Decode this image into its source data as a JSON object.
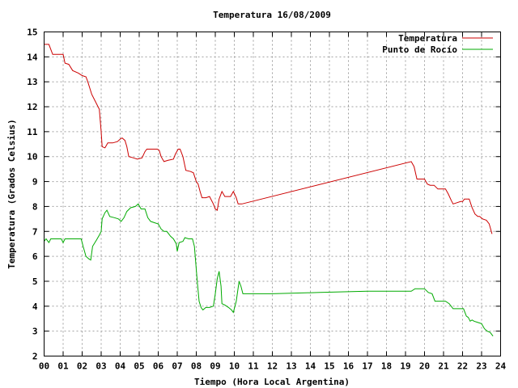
{
  "chart_data": {
    "type": "line",
    "title": "Temperatura 16/08/2009",
    "xlabel": "Tiempo (Hora Local Argentina)",
    "ylabel": "Temperatura (Grados Celsius)",
    "xlim": [
      0,
      24
    ],
    "ylim": [
      2,
      15
    ],
    "x_ticks": [
      "00",
      "01",
      "02",
      "03",
      "04",
      "05",
      "06",
      "07",
      "08",
      "09",
      "10",
      "11",
      "12",
      "13",
      "14",
      "15",
      "16",
      "17",
      "18",
      "19",
      "20",
      "21",
      "22",
      "23",
      "24"
    ],
    "y_ticks": [
      2,
      3,
      4,
      5,
      6,
      7,
      8,
      9,
      10,
      11,
      12,
      13,
      14,
      15
    ],
    "grid": true,
    "legend_position": "top-right",
    "series": [
      {
        "name": "Temperatura",
        "color": "#cc0000",
        "points": [
          [
            0.0,
            14.5
          ],
          [
            0.25,
            14.5
          ],
          [
            0.45,
            14.1
          ],
          [
            1.0,
            14.1
          ],
          [
            1.1,
            13.75
          ],
          [
            1.3,
            13.7
          ],
          [
            1.5,
            13.45
          ],
          [
            1.8,
            13.35
          ],
          [
            2.0,
            13.25
          ],
          [
            2.2,
            13.2
          ],
          [
            2.3,
            13.0
          ],
          [
            2.5,
            12.5
          ],
          [
            2.7,
            12.2
          ],
          [
            2.9,
            11.9
          ],
          [
            3.0,
            11.0
          ],
          [
            3.05,
            10.4
          ],
          [
            3.2,
            10.35
          ],
          [
            3.35,
            10.55
          ],
          [
            3.6,
            10.55
          ],
          [
            3.85,
            10.6
          ],
          [
            4.0,
            10.7
          ],
          [
            4.1,
            10.75
          ],
          [
            4.25,
            10.65
          ],
          [
            4.35,
            10.4
          ],
          [
            4.45,
            10.0
          ],
          [
            4.7,
            9.95
          ],
          [
            4.9,
            9.9
          ],
          [
            5.15,
            9.95
          ],
          [
            5.3,
            10.2
          ],
          [
            5.4,
            10.3
          ],
          [
            5.7,
            10.3
          ],
          [
            5.95,
            10.3
          ],
          [
            6.05,
            10.25
          ],
          [
            6.15,
            10.0
          ],
          [
            6.3,
            9.8
          ],
          [
            6.5,
            9.85
          ],
          [
            6.8,
            9.9
          ],
          [
            6.9,
            10.1
          ],
          [
            7.05,
            10.3
          ],
          [
            7.15,
            10.3
          ],
          [
            7.3,
            10.0
          ],
          [
            7.45,
            9.45
          ],
          [
            7.7,
            9.4
          ],
          [
            7.85,
            9.35
          ],
          [
            8.0,
            9.0
          ],
          [
            8.1,
            8.9
          ],
          [
            8.2,
            8.6
          ],
          [
            8.3,
            8.35
          ],
          [
            8.5,
            8.35
          ],
          [
            8.7,
            8.4
          ],
          [
            8.9,
            8.1
          ],
          [
            9.0,
            7.9
          ],
          [
            9.1,
            7.85
          ],
          [
            9.2,
            8.3
          ],
          [
            9.35,
            8.6
          ],
          [
            9.5,
            8.4
          ],
          [
            9.8,
            8.4
          ],
          [
            9.95,
            8.6
          ],
          [
            10.1,
            8.35
          ],
          [
            10.2,
            8.1
          ],
          [
            10.4,
            8.1
          ],
          [
            19.3,
            9.8
          ],
          [
            19.45,
            9.6
          ],
          [
            19.6,
            9.1
          ],
          [
            19.8,
            9.1
          ],
          [
            20.0,
            9.1
          ],
          [
            20.15,
            8.9
          ],
          [
            20.3,
            8.85
          ],
          [
            20.5,
            8.85
          ],
          [
            20.7,
            8.7
          ],
          [
            21.1,
            8.7
          ],
          [
            21.25,
            8.5
          ],
          [
            21.4,
            8.25
          ],
          [
            21.5,
            8.1
          ],
          [
            21.7,
            8.15
          ],
          [
            21.9,
            8.2
          ],
          [
            22.0,
            8.2
          ],
          [
            22.1,
            8.3
          ],
          [
            22.35,
            8.3
          ],
          [
            22.5,
            7.95
          ],
          [
            22.65,
            7.7
          ],
          [
            22.8,
            7.6
          ],
          [
            22.9,
            7.6
          ],
          [
            23.05,
            7.5
          ],
          [
            23.25,
            7.45
          ],
          [
            23.4,
            7.3
          ],
          [
            23.55,
            6.9
          ]
        ]
      },
      {
        "name": "Punto de Rocío",
        "color": "#00aa00",
        "points": [
          [
            0.0,
            6.6
          ],
          [
            0.1,
            6.7
          ],
          [
            0.25,
            6.55
          ],
          [
            0.35,
            6.7
          ],
          [
            0.6,
            6.7
          ],
          [
            0.9,
            6.7
          ],
          [
            1.0,
            6.55
          ],
          [
            1.1,
            6.7
          ],
          [
            1.3,
            6.7
          ],
          [
            1.5,
            6.7
          ],
          [
            1.7,
            6.7
          ],
          [
            1.95,
            6.7
          ],
          [
            2.05,
            6.4
          ],
          [
            2.2,
            6.0
          ],
          [
            2.35,
            5.9
          ],
          [
            2.45,
            5.85
          ],
          [
            2.55,
            6.4
          ],
          [
            2.75,
            6.65
          ],
          [
            2.9,
            6.85
          ],
          [
            3.0,
            7.0
          ],
          [
            3.05,
            7.5
          ],
          [
            3.2,
            7.75
          ],
          [
            3.3,
            7.85
          ],
          [
            3.45,
            7.6
          ],
          [
            3.7,
            7.55
          ],
          [
            3.9,
            7.5
          ],
          [
            4.05,
            7.4
          ],
          [
            4.2,
            7.55
          ],
          [
            4.35,
            7.8
          ],
          [
            4.55,
            7.95
          ],
          [
            4.8,
            8.0
          ],
          [
            4.95,
            8.1
          ],
          [
            5.1,
            7.9
          ],
          [
            5.3,
            7.9
          ],
          [
            5.45,
            7.55
          ],
          [
            5.6,
            7.4
          ],
          [
            5.8,
            7.35
          ],
          [
            6.0,
            7.3
          ],
          [
            6.15,
            7.1
          ],
          [
            6.3,
            7.0
          ],
          [
            6.45,
            7.0
          ],
          [
            6.65,
            6.8
          ],
          [
            6.8,
            6.7
          ],
          [
            6.95,
            6.5
          ],
          [
            7.0,
            6.2
          ],
          [
            7.1,
            6.55
          ],
          [
            7.3,
            6.6
          ],
          [
            7.4,
            6.75
          ],
          [
            7.6,
            6.7
          ],
          [
            7.8,
            6.7
          ],
          [
            7.9,
            6.4
          ],
          [
            8.05,
            5.0
          ],
          [
            8.15,
            4.2
          ],
          [
            8.25,
            3.95
          ],
          [
            8.35,
            3.85
          ],
          [
            8.5,
            3.95
          ],
          [
            8.7,
            3.95
          ],
          [
            8.9,
            4.0
          ],
          [
            9.0,
            4.5
          ],
          [
            9.1,
            5.1
          ],
          [
            9.2,
            5.4
          ],
          [
            9.3,
            4.8
          ],
          [
            9.35,
            4.1
          ],
          [
            9.5,
            4.05
          ],
          [
            9.7,
            3.95
          ],
          [
            9.85,
            3.85
          ],
          [
            9.95,
            3.75
          ],
          [
            10.1,
            4.2
          ],
          [
            10.25,
            5.0
          ],
          [
            10.35,
            4.8
          ],
          [
            10.45,
            4.5
          ],
          [
            12.0,
            4.5
          ],
          [
            14.5,
            4.55
          ],
          [
            17.0,
            4.6
          ],
          [
            19.3,
            4.6
          ],
          [
            19.5,
            4.7
          ],
          [
            20.0,
            4.7
          ],
          [
            20.2,
            4.55
          ],
          [
            20.4,
            4.5
          ],
          [
            20.55,
            4.2
          ],
          [
            20.8,
            4.2
          ],
          [
            21.1,
            4.2
          ],
          [
            21.3,
            4.1
          ],
          [
            21.5,
            3.9
          ],
          [
            21.8,
            3.9
          ],
          [
            22.05,
            3.9
          ],
          [
            22.2,
            3.6
          ],
          [
            22.3,
            3.55
          ],
          [
            22.4,
            3.4
          ],
          [
            22.5,
            3.45
          ],
          [
            22.6,
            3.4
          ],
          [
            22.8,
            3.35
          ],
          [
            23.0,
            3.3
          ],
          [
            23.15,
            3.1
          ],
          [
            23.3,
            3.0
          ],
          [
            23.45,
            2.95
          ],
          [
            23.6,
            2.8
          ]
        ]
      }
    ]
  }
}
